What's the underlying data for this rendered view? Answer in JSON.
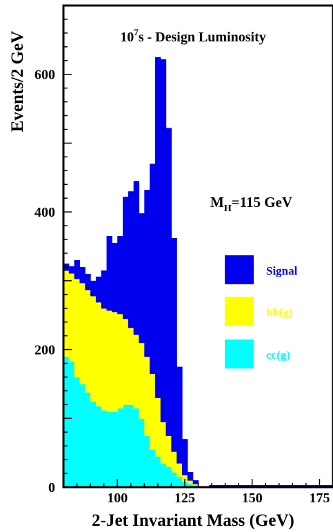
{
  "chart_data": {
    "type": "area",
    "stacked": true,
    "title": "10^7s - Design Luminosity",
    "title_base": "10",
    "title_exponent": "7",
    "title_suffix": "s - Design Luminosity",
    "annotation": {
      "prefix": "M",
      "subscript": "H",
      "suffix": "=115 GeV"
    },
    "xlabel": "2-Jet Invariant Mass (GeV)",
    "ylabel": "Events/2 GeV",
    "xlim": [
      80,
      180
    ],
    "ylim": [
      0,
      700
    ],
    "x_ticks": [
      100,
      125,
      150,
      175
    ],
    "y_ticks": [
      0,
      200,
      400,
      600
    ],
    "bin_width": 2,
    "x": [
      80,
      82,
      84,
      86,
      88,
      90,
      92,
      94,
      96,
      98,
      100,
      102,
      104,
      106,
      108,
      110,
      112,
      114,
      116,
      118,
      120,
      122,
      124,
      126,
      128,
      130,
      132,
      134,
      136,
      138,
      140,
      142,
      144,
      146,
      148,
      150,
      152,
      154,
      156,
      158,
      160,
      162,
      164,
      166,
      168,
      170,
      172,
      174,
      176,
      178
    ],
    "series": [
      {
        "name": "cc(g)",
        "color": "#00ffff",
        "values": [
          190,
          183,
          160,
          150,
          138,
          125,
          118,
          112,
          110,
          110,
          115,
          120,
          120,
          115,
          100,
          75,
          55,
          45,
          35,
          30,
          22,
          15,
          8,
          5,
          3,
          1,
          0,
          0,
          0,
          0,
          0,
          0,
          0,
          0,
          0,
          0,
          0,
          0,
          0,
          0,
          0,
          0,
          0,
          0,
          0,
          0,
          0,
          0,
          0,
          0
        ]
      },
      {
        "name": "bb(g)",
        "color": "#ffff00",
        "values": [
          125,
          128,
          143,
          147,
          149,
          153,
          151,
          148,
          147,
          145,
          137,
          125,
          112,
          107,
          110,
          115,
          110,
          85,
          60,
          45,
          30,
          20,
          10,
          5,
          2,
          1,
          0,
          0,
          0,
          0,
          0,
          0,
          0,
          0,
          0,
          0,
          0,
          0,
          0,
          0,
          0,
          0,
          0,
          0,
          0,
          0,
          0,
          0,
          0,
          0
        ]
      },
      {
        "name": "Signal",
        "color": "#0000ee",
        "values": [
          10,
          10,
          27,
          23,
          23,
          22,
          37,
          55,
          108,
          100,
          113,
          177,
          198,
          223,
          188,
          242,
          305,
          495,
          527,
          447,
          310,
          140,
          52,
          12,
          5,
          0,
          0,
          3,
          3,
          3,
          3,
          3,
          3,
          3,
          3,
          3,
          3,
          3,
          3,
          3,
          3,
          3,
          3,
          3,
          3,
          3,
          3,
          3,
          3,
          3
        ]
      }
    ],
    "legend": {
      "placement": "right",
      "entries": [
        "Signal",
        "bb(g)",
        "cc(g)"
      ]
    },
    "legend_text_colors": {
      "Signal": "#0000ee",
      "bb(g)": "#ffff00",
      "cc(g)": "#00ffff"
    },
    "grid": false
  }
}
